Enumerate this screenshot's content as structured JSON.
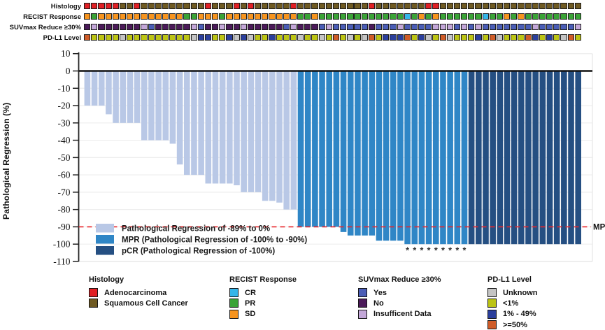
{
  "tracks": {
    "labels": [
      "Histology",
      "RECIST Response",
      "SUVmax Reduce ≥30%",
      "PD-L1 Level"
    ],
    "keys": [
      "histology",
      "recist",
      "suvmax",
      "pdl1"
    ],
    "histology": "AAAAASSASSSSSSSSSASSSASASSSSSASSSSSSSSSSASSSSSSSAASSSSSSSSSSSSSSSSSSSS",
    "recist": "SPSSSSSSSSSSSSPPSSSPSSSSSSSSSSPPSPPPPPPPPPPPPCPSPSPPPPPPCPPSPSPPPPPPPP",
    "suvmax": "NINNNNNNIYNNNNNIYNNINNINNNNNYINNNYIYYYYYNYYYIYYYYIIIYIYIYYYYYYYIYYYYYI",
    "pdl1": "HLLLLULLLLLLLLLUMMLLMUMULLMLLLULLULHLULUHLMMMHLMULHULLLMLHULLLHMLMLUHL",
    "color_maps": {
      "histology": {
        "A": "#e01f24",
        "S": "#6f5a22"
      },
      "recist": {
        "C": "#35b5e9",
        "P": "#3aa336",
        "S": "#f7941e"
      },
      "suvmax": {
        "Y": "#4a5db6",
        "N": "#4b1a59",
        "I": "#c3a7d8"
      },
      "pdl1": {
        "U": "#c4c4c4",
        "L": "#bcc414",
        "M": "#2b3f9c",
        "H": "#cf5c28"
      }
    }
  },
  "chart_data": {
    "type": "bar",
    "title": "",
    "xlabel": "",
    "ylabel": "Pathological Regression (%)",
    "ylim": [
      -110,
      10
    ],
    "yticks": [
      10,
      0,
      -10,
      -20,
      -30,
      -40,
      -50,
      -60,
      -70,
      -80,
      -90,
      -100,
      -110
    ],
    "grid": true,
    "values": [
      -20,
      -20,
      -20,
      -25,
      -30,
      -30,
      -30,
      -30,
      -40,
      -40,
      -40,
      -40,
      -42,
      -54,
      -60,
      -60,
      -60,
      -65,
      -65,
      -65,
      -65,
      -66,
      -70,
      -70,
      -70,
      -75,
      -75,
      -76,
      -80,
      -80,
      -90,
      -90,
      -90,
      -90,
      -90,
      -90,
      -93,
      -95,
      -95,
      -95,
      -95,
      -98,
      -98,
      -98,
      -98,
      -100,
      -100,
      -100,
      -100,
      -100,
      -100,
      -100,
      -100,
      -100,
      -100,
      -100,
      -100,
      -100,
      -100,
      -100,
      -100,
      -100,
      -100,
      -100,
      -100,
      -100,
      -100,
      -100,
      -100,
      -100
    ],
    "bar_class": "PPPPPPPPPPPPPPPPPPPPPPPPPPPPPPMMMMMMMMMMMMMMMMMMMMMMMMCCCCCCCCCCCCCCCC",
    "class_colors": {
      "P": "#b9c8e6",
      "M": "#2f86c6",
      "C": "#254f82"
    },
    "asterisk_columns": [
      46,
      47,
      48,
      49,
      50,
      51,
      52,
      53,
      54
    ],
    "asterisk_symbol": "*",
    "mpr_line": {
      "value": -90,
      "label": "MPR",
      "color": "#e8262b"
    },
    "inplot_legend": [
      {
        "code": "P",
        "label": "Pathological Regression of -89% to 0%"
      },
      {
        "code": "M",
        "label": "MPR (Pathological Regression of -100% to -90%)"
      },
      {
        "code": "C",
        "label": "pCR (Pathological Regression of -100%)"
      }
    ]
  },
  "legends": [
    {
      "key": "histology",
      "title": "Histology",
      "items": [
        {
          "code": "A",
          "label": "Adenocarcinoma"
        },
        {
          "code": "S",
          "label": "Squamous Cell Cancer"
        }
      ]
    },
    {
      "key": "recist",
      "title": "RECIST Response",
      "items": [
        {
          "code": "C",
          "label": "CR"
        },
        {
          "code": "P",
          "label": "PR"
        },
        {
          "code": "S",
          "label": "SD"
        }
      ]
    },
    {
      "key": "suvmax",
      "title": "SUVmax Reduce ≥30%",
      "items": [
        {
          "code": "Y",
          "label": "Yes"
        },
        {
          "code": "N",
          "label": "No"
        },
        {
          "code": "I",
          "label": "Insufficent Data"
        }
      ]
    },
    {
      "key": "pdl1",
      "title": "PD-L1 Level",
      "items": [
        {
          "code": "U",
          "label": "Unknown"
        },
        {
          "code": "L",
          "label": "<1%"
        },
        {
          "code": "M",
          "label": "1% - 49%"
        },
        {
          "code": "H",
          "label": ">=50%"
        }
      ]
    }
  ]
}
